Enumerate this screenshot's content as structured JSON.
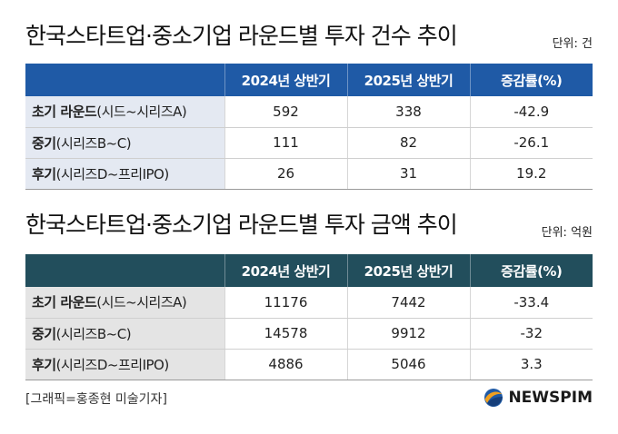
{
  "tables": [
    {
      "title": "한국스타트업·중소기업 라운드별 투자 건수 추이",
      "unit": "단위: 건",
      "headers": [
        "",
        "2024년 상반기",
        "2025년 상반기",
        "증감률(%)"
      ],
      "rows": [
        {
          "stage": "초기 라운드",
          "detail": "(시드~시리즈A)",
          "y2024": "592",
          "y2025": "338",
          "change": "-42.9"
        },
        {
          "stage": "중기",
          "detail": "(시리즈B~C)",
          "y2024": "111",
          "y2025": "82",
          "change": "-26.1"
        },
        {
          "stage": "후기",
          "detail": "(시리즈D~프리IPO)",
          "y2024": "26",
          "y2025": "31",
          "change": "19.2"
        }
      ]
    },
    {
      "title": "한국스타트업·중소기업 라운드별 투자 금액 추이",
      "unit": "단위: 억원",
      "headers": [
        "",
        "2024년 상반기",
        "2025년 상반기",
        "증감률(%)"
      ],
      "rows": [
        {
          "stage": "초기 라운드",
          "detail": "(시드~시리즈A)",
          "y2024": "11176",
          "y2025": "7442",
          "change": "-33.4"
        },
        {
          "stage": "중기",
          "detail": "(시리즈B~C)",
          "y2024": "14578",
          "y2025": "9912",
          "change": "-32"
        },
        {
          "stage": "후기",
          "detail": "(시리즈D~프리IPO)",
          "y2024": "4886",
          "y2025": "5046",
          "change": "3.3"
        }
      ]
    }
  ],
  "credit": "[그래픽=홍종현 미술기자]",
  "brand": {
    "name": "NEWSPIM",
    "logo_icon": "newspim-globe-icon",
    "logo_colors": [
      "#f0a020",
      "#1f5aa6"
    ]
  },
  "colors": {
    "table1_header": "#1f5aa6",
    "table1_label_bg": "#e4e9f2",
    "table2_header": "#224e5c",
    "table2_label_bg": "#e4e4e4"
  }
}
